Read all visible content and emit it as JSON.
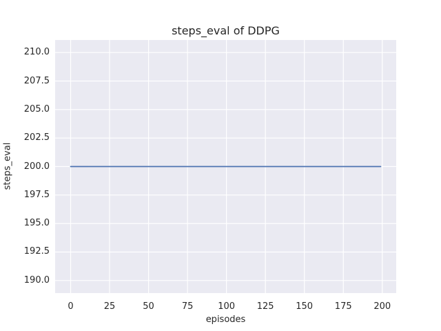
{
  "figure": {
    "background": "#ffffff"
  },
  "chart_data": {
    "type": "line",
    "title": "steps_eval of DDPG",
    "xlabel": "episodes",
    "ylabel": "steps_eval",
    "xlim": [
      -9.95,
      208.95
    ],
    "ylim": [
      188.9,
      211.1
    ],
    "grid": true,
    "legend": "none",
    "xticks": [
      {
        "value": 0,
        "label": "0"
      },
      {
        "value": 25,
        "label": "25"
      },
      {
        "value": 50,
        "label": "50"
      },
      {
        "value": 75,
        "label": "75"
      },
      {
        "value": 100,
        "label": "100"
      },
      {
        "value": 125,
        "label": "125"
      },
      {
        "value": 150,
        "label": "150"
      },
      {
        "value": 175,
        "label": "175"
      },
      {
        "value": 200,
        "label": "200"
      }
    ],
    "yticks": [
      {
        "value": 190.0,
        "label": "190.0"
      },
      {
        "value": 192.5,
        "label": "192.5"
      },
      {
        "value": 195.0,
        "label": "195.0"
      },
      {
        "value": 197.5,
        "label": "197.5"
      },
      {
        "value": 200.0,
        "label": "200.0"
      },
      {
        "value": 202.5,
        "label": "202.5"
      },
      {
        "value": 205.0,
        "label": "205.0"
      },
      {
        "value": 207.5,
        "label": "207.5"
      },
      {
        "value": 210.0,
        "label": "210.0"
      }
    ],
    "series": [
      {
        "name": "DDPG steps_eval",
        "description": "constant value 200 for every episode from 0 to 199",
        "x": [
          0,
          199
        ],
        "y": [
          200,
          200
        ],
        "color": "#4c72b0",
        "line_width": 1.8
      }
    ],
    "style": {
      "axes_background": "#eaeaf2",
      "grid_color": "#ffffff",
      "grid_width": 1.2,
      "text_color": "#262626"
    }
  }
}
